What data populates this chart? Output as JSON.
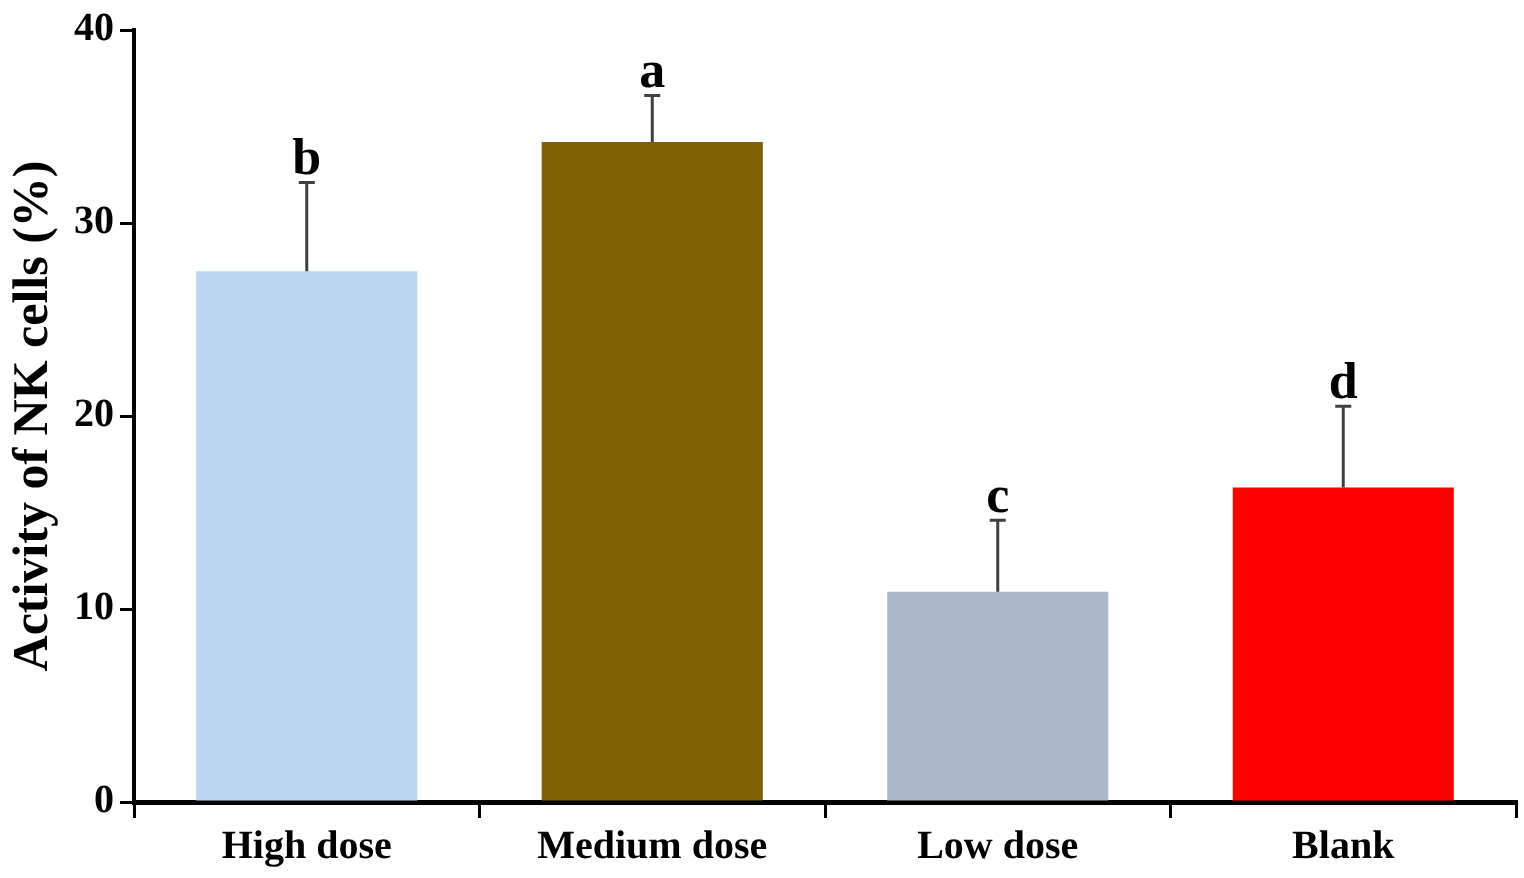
{
  "chart_data": {
    "type": "bar",
    "ylabel": "Activity of NK cells (%)",
    "categories": [
      "High dose",
      "Medium dose",
      "Low dose",
      "Blank"
    ],
    "values": [
      27.5,
      34.2,
      10.9,
      16.3
    ],
    "colors": [
      "#bdd7ee",
      "#7f6000",
      "#adb9ca",
      "#ff0000"
    ],
    "errors": [
      [
        27.5,
        32.1
      ],
      [
        34.2,
        36.6
      ],
      [
        10.9,
        14.6
      ],
      [
        16.3,
        20.5
      ]
    ],
    "ylim": [
      0,
      40
    ],
    "yticks": [
      0,
      10,
      20,
      30,
      40
    ],
    "grid": false,
    "legend": false,
    "annotations": [
      {
        "text": "b",
        "x": "High dose",
        "y": 32.1
      },
      {
        "text": "a",
        "x": "Medium dose",
        "y": 36.6
      },
      {
        "text": "c",
        "x": "Low dose",
        "y": 14.6
      },
      {
        "text": "d",
        "x": "Blank",
        "y": 20.5
      }
    ]
  }
}
